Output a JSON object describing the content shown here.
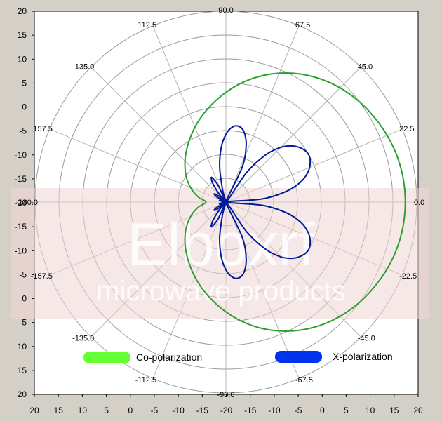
{
  "chart_data": {
    "type": "polar",
    "axis_ticks": {
      "left": [
        "20",
        "15",
        "10",
        "5",
        "0",
        "-5",
        "-10",
        "-15",
        "-20",
        "-15",
        "-10",
        "-5",
        "0",
        "5",
        "10",
        "15",
        "20"
      ],
      "bottom": [
        "20",
        "15",
        "10",
        "5",
        "0",
        "-5",
        "-10",
        "-15",
        "-20",
        "-15",
        "-10",
        "-5",
        "0",
        "5",
        "10",
        "15",
        "20"
      ]
    },
    "angle_labels": [
      "0.0",
      "22.5",
      "45.0",
      "67.5",
      "90.0",
      "112.5",
      "135.0",
      "157.5",
      "-180.0",
      "-157.5",
      "-135.0",
      "-112.5",
      "-90.0",
      "-67.5",
      "-45.0",
      "-22.5"
    ],
    "grid": true,
    "radial_range_db": [
      -20,
      20
    ],
    "watermark": {
      "brand": "Elboxrf",
      "tagline": "microwave products"
    },
    "series": [
      {
        "name": "Co-polarization",
        "color": "#2ca02c",
        "legend_color": "#66ff33",
        "angles_deg": [
          0,
          10,
          20,
          30,
          40,
          50,
          60,
          70,
          80,
          90,
          100,
          110,
          120,
          130,
          140,
          150,
          160,
          170,
          180,
          190,
          200,
          210,
          220,
          230,
          240,
          250,
          260,
          270,
          280,
          290,
          300,
          310,
          320,
          330,
          340,
          350
        ],
        "values_db": [
          17.6,
          17.4,
          16.8,
          15.8,
          14.6,
          13.0,
          11.0,
          8.6,
          5.9,
          3.0,
          0.2,
          -2.4,
          -4.8,
          -6.9,
          -8.8,
          -10.6,
          -12.4,
          -14.2,
          -15.8,
          -14.2,
          -12.4,
          -10.6,
          -8.8,
          -6.9,
          -4.8,
          -2.4,
          0.2,
          3.0,
          5.9,
          8.6,
          11.0,
          13.0,
          14.6,
          15.8,
          16.8,
          17.4
        ]
      },
      {
        "name": "X-polarization",
        "color": "#001a99",
        "legend_color": "#0033ee",
        "angles_deg": [
          0,
          5,
          10,
          15,
          20,
          25,
          30,
          35,
          40,
          45,
          50,
          55,
          60,
          65,
          70,
          75,
          80,
          85,
          90,
          95,
          100,
          105,
          110,
          115,
          120,
          125,
          130,
          135,
          140,
          145,
          150,
          155,
          160,
          165,
          170,
          175,
          180,
          185,
          190,
          195,
          200,
          205,
          210,
          215,
          220,
          225,
          230,
          235,
          240,
          245,
          250,
          255,
          260,
          265,
          270,
          275,
          280,
          285,
          290,
          295,
          300,
          305,
          310,
          315,
          320,
          325,
          330,
          335,
          340,
          345,
          350,
          355
        ],
        "values_db": [
          -20.0,
          -12.4,
          -7.2,
          -3.8,
          -1.7,
          -0.5,
          0.0,
          -0.5,
          -1.7,
          -3.8,
          -7.2,
          -12.4,
          -20.0,
          -12.0,
          -7.6,
          -5.0,
          -3.9,
          -4.2,
          -5.8,
          -8.6,
          -12.5,
          -17.3,
          -20.0,
          -16.2,
          -14.0,
          -15.2,
          -17.8,
          -20.0,
          -18.0,
          -17.0,
          -17.8,
          -20.0,
          -19.0,
          -18.6,
          -19.3,
          -20.0,
          -20.0,
          -20.0,
          -19.3,
          -18.6,
          -19.0,
          -20.0,
          -17.8,
          -17.0,
          -18.0,
          -20.0,
          -17.8,
          -15.2,
          -14.0,
          -16.2,
          -20.0,
          -17.3,
          -12.5,
          -8.6,
          -5.8,
          -4.2,
          -3.9,
          -5.0,
          -7.6,
          -12.0,
          -20.0,
          -12.4,
          -7.2,
          -3.8,
          -1.7,
          -0.5,
          0.0,
          -0.5,
          -1.7,
          -3.8,
          -7.2,
          -12.4
        ]
      }
    ]
  }
}
